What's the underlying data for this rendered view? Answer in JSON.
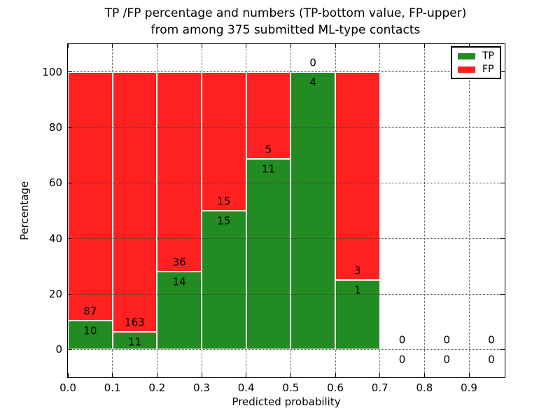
{
  "chart_data": {
    "type": "bar",
    "variant": "stacked-percentage-histogram",
    "title_lines": [
      "TP /FP percentage and numbers (TP-bottom value, FP-upper)",
      "from among 375 submitted ML-type contacts"
    ],
    "xlabel": "Predicted probability",
    "ylabel": "Percentage",
    "bin_edges": [
      0.0,
      0.1,
      0.2,
      0.3,
      0.4,
      0.5,
      0.6,
      0.7,
      0.8,
      0.9,
      1.0
    ],
    "series": [
      {
        "name": "TP",
        "color": "#228b22",
        "counts": [
          10,
          11,
          14,
          15,
          11,
          4,
          1,
          0,
          0,
          0
        ]
      },
      {
        "name": "FP",
        "color": "#ff2020",
        "counts": [
          87,
          163,
          36,
          15,
          5,
          0,
          3,
          0,
          0,
          0
        ]
      }
    ],
    "bar_label_rule": "FP count printed above the TP/FP boundary, TP count printed below it",
    "xticks": [
      "0.0",
      "0.1",
      "0.2",
      "0.3",
      "0.4",
      "0.5",
      "0.6",
      "0.7",
      "0.8",
      "0.9"
    ],
    "yticks": [
      "0",
      "20",
      "40",
      "60",
      "80",
      "100"
    ],
    "xlim": [
      0.0,
      0.98
    ],
    "ylim": [
      -10,
      110
    ],
    "grid": {
      "style": "dotted",
      "horizontal": true,
      "vertical": true
    },
    "legend": {
      "position": "upper-right",
      "entries": [
        {
          "label": "TP",
          "color": "#228b22"
        },
        {
          "label": "FP",
          "color": "#ff2020"
        }
      ]
    }
  }
}
